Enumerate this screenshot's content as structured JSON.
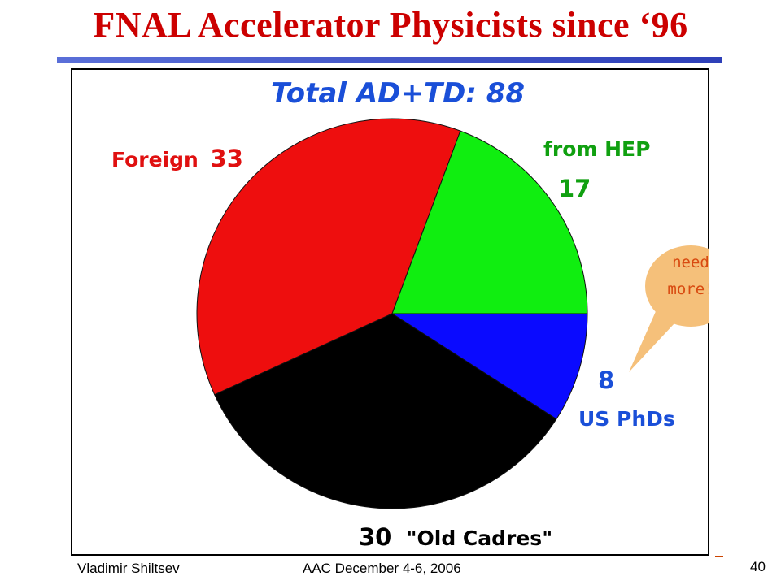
{
  "slide": {
    "title": "FNAL Accelerator Physicists since ‘96",
    "author": "Vladimir Shiltsev",
    "event": "AAC December 4-6, 2006",
    "page_number": "40"
  },
  "callout": {
    "line1": "need",
    "line2": "more!",
    "fill": "#f5c07a",
    "text_color": "#d84a10"
  },
  "chart_data": {
    "type": "pie",
    "title": "Total AD+TD: 88",
    "total": 88,
    "slices": [
      {
        "category": "Foreign",
        "value": 33,
        "color": "#ee0e0e"
      },
      {
        "category": "from HEP",
        "value": 17,
        "color": "#10ee10"
      },
      {
        "category": "US PhDs",
        "value": 8,
        "color": "#0a0aff"
      },
      {
        "category": "\"Old Cadres\"",
        "value": 30,
        "color": "#000000"
      }
    ],
    "label_colors": {
      "title": "#1a4fd8",
      "Foreign": "#e01010",
      "from HEP": "#10a010",
      "US PhDs": "#1a4fd8",
      "Old Cadres": "#000000"
    }
  }
}
